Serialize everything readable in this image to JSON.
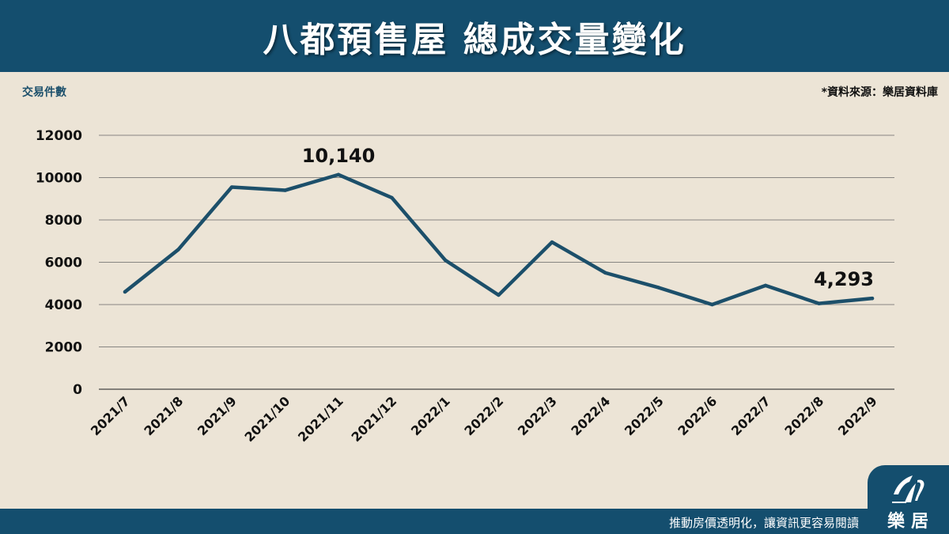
{
  "header": {
    "title": "八都預售屋 總成交量變化"
  },
  "y_axis_title": "交易件數",
  "source_note": "*資料來源：樂居資料庫",
  "footer": {
    "slogan": "推動房價透明化，讓資訊更容易閱讀"
  },
  "logo": {
    "text": "樂居",
    "icon": "leju-logo-icon"
  },
  "colors": {
    "brand": "#144e6e",
    "background": "#ece4d6",
    "line": "#1c4f6a",
    "grid": "#555555"
  },
  "chart_data": {
    "type": "line",
    "title": "八都預售屋 總成交量變化",
    "xlabel": "",
    "ylabel": "交易件數",
    "ylim": [
      0,
      12000
    ],
    "yticks": [
      12000,
      10000,
      8000,
      6000,
      4000,
      2000,
      0
    ],
    "grid": true,
    "categories": [
      "2021/7",
      "2021/8",
      "2021/9",
      "2021/10",
      "2021/11",
      "2021/12",
      "2022/1",
      "2022/2",
      "2022/3",
      "2022/4",
      "2022/5",
      "2022/6",
      "2022/7",
      "2022/8",
      "2022/9"
    ],
    "series": [
      {
        "name": "交易件數",
        "values": [
          4600,
          6600,
          9550,
          9400,
          10140,
          9050,
          6100,
          4450,
          6950,
          5500,
          4800,
          4000,
          4900,
          4050,
          4293
        ]
      }
    ],
    "annotations": [
      {
        "index": 4,
        "text": "10,140"
      },
      {
        "index": 14,
        "text": "4,293"
      }
    ]
  }
}
